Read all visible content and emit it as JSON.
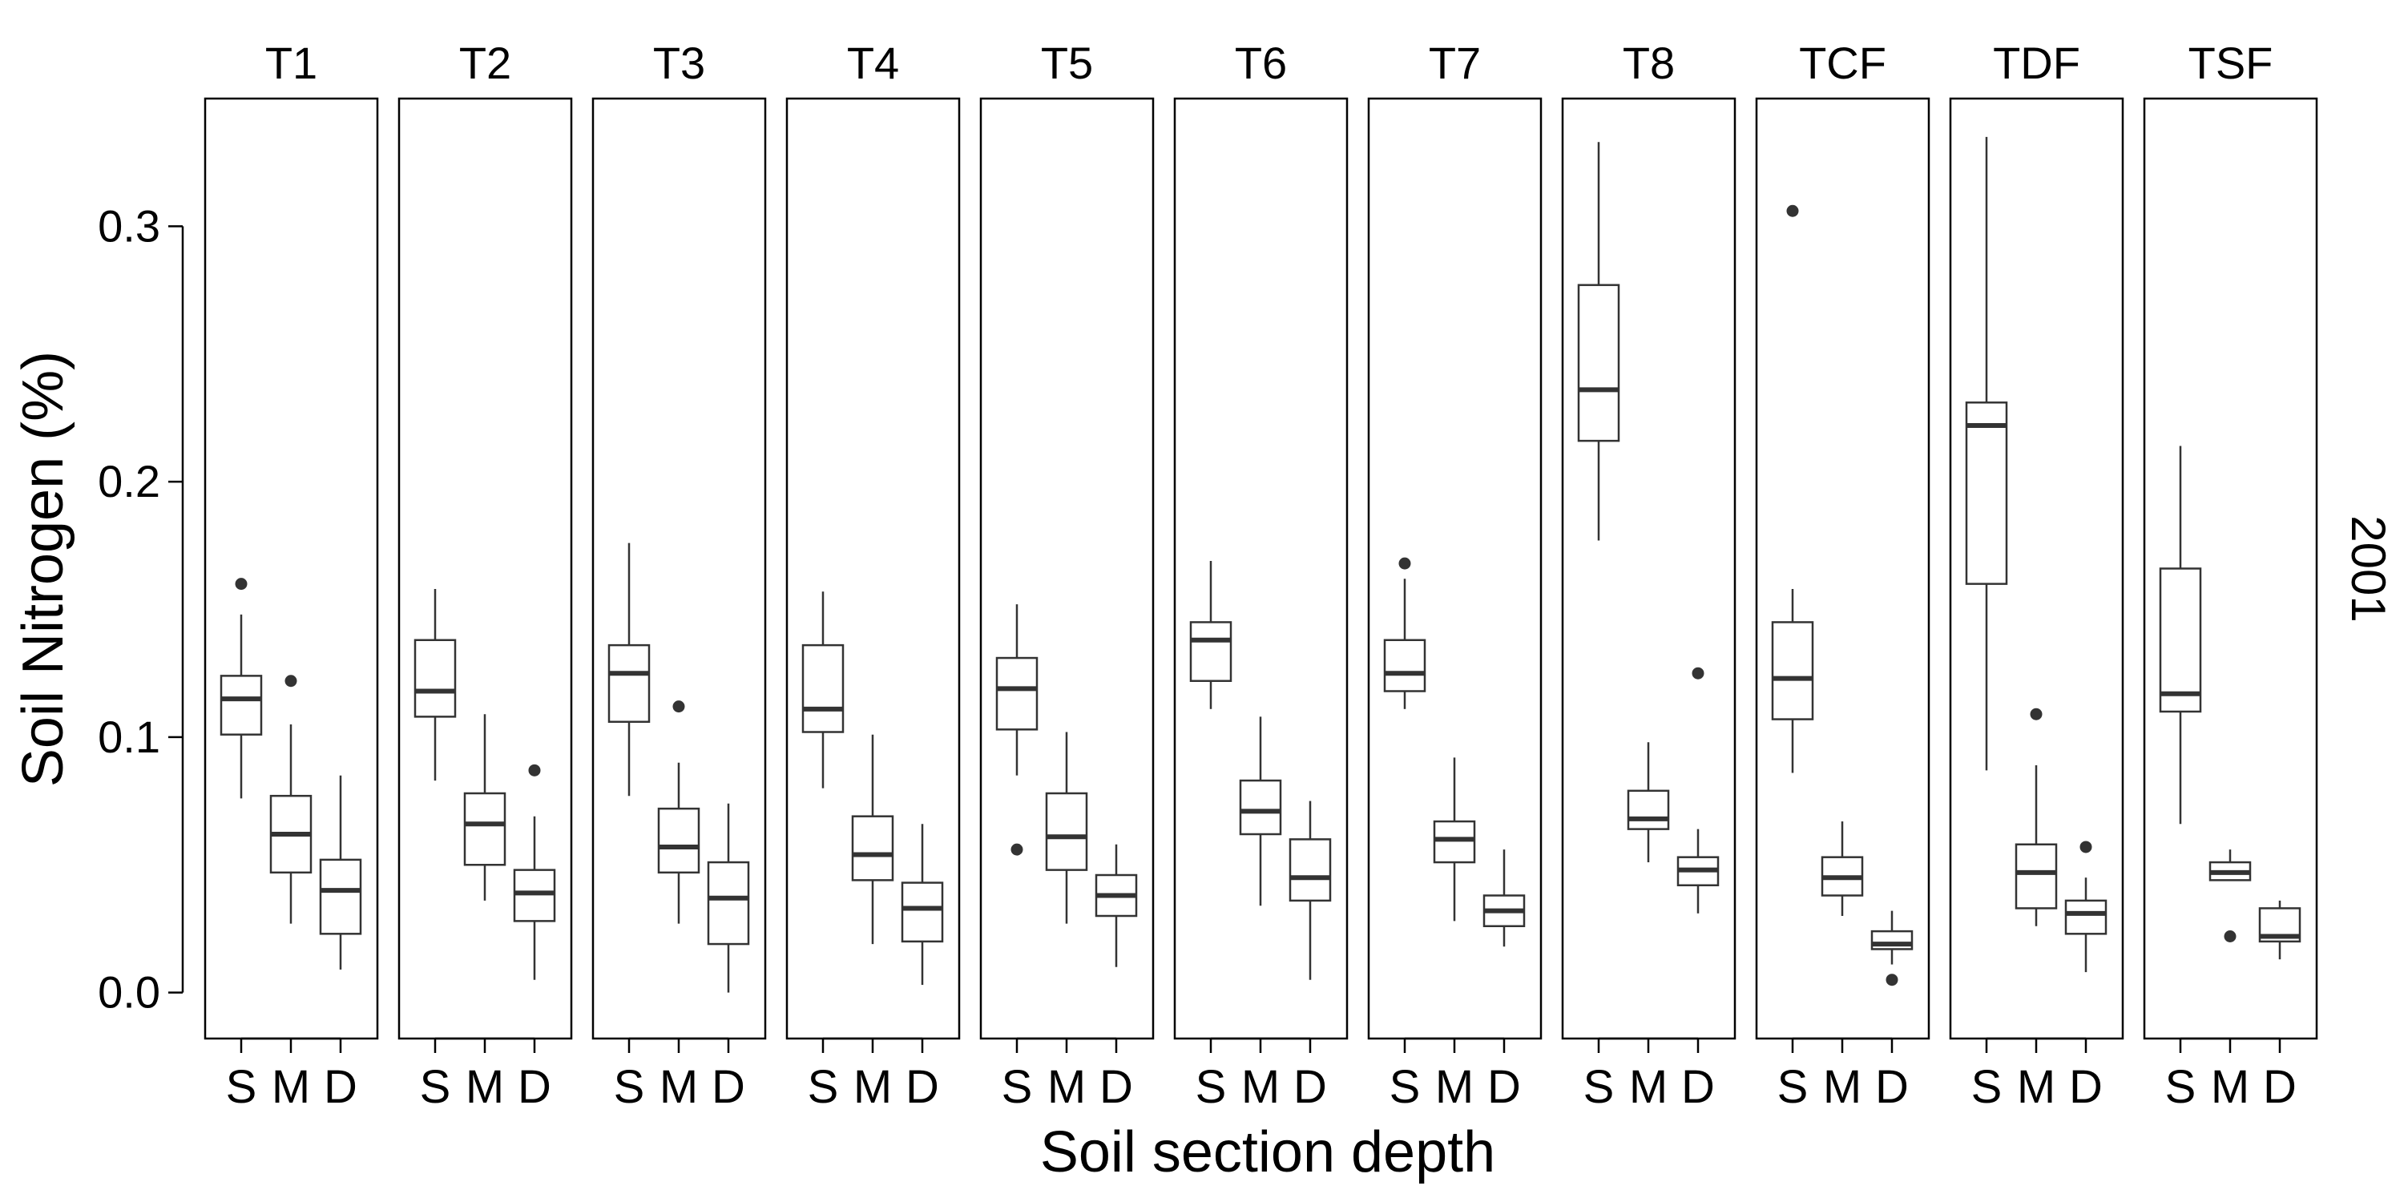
{
  "chart_data": {
    "type": "boxplot",
    "xlabel": "Soil section depth",
    "ylabel": "Soil Nitrogen (%)",
    "row_label": "2001",
    "ylim": [
      -0.018,
      0.35
    ],
    "yticks": [
      0.0,
      0.1,
      0.2,
      0.3
    ],
    "ytick_labels": [
      "0.0",
      "0.1",
      "0.2",
      "0.3"
    ],
    "categories": [
      "S",
      "M",
      "D"
    ],
    "grid": false,
    "panels": [
      {
        "name": "T1",
        "boxes": [
          {
            "cat": "S",
            "whislo": 0.076,
            "q1": 0.101,
            "med": 0.115,
            "q3": 0.124,
            "whishi": 0.148,
            "fliers": [
              0.16
            ]
          },
          {
            "cat": "M",
            "whislo": 0.027,
            "q1": 0.047,
            "med": 0.062,
            "q3": 0.077,
            "whishi": 0.105,
            "fliers": [
              0.122
            ]
          },
          {
            "cat": "D",
            "whislo": 0.009,
            "q1": 0.023,
            "med": 0.04,
            "q3": 0.052,
            "whishi": 0.085,
            "fliers": []
          }
        ]
      },
      {
        "name": "T2",
        "boxes": [
          {
            "cat": "S",
            "whislo": 0.083,
            "q1": 0.108,
            "med": 0.118,
            "q3": 0.138,
            "whishi": 0.158,
            "fliers": []
          },
          {
            "cat": "M",
            "whislo": 0.036,
            "q1": 0.05,
            "med": 0.066,
            "q3": 0.078,
            "whishi": 0.109,
            "fliers": []
          },
          {
            "cat": "D",
            "whislo": 0.005,
            "q1": 0.028,
            "med": 0.039,
            "q3": 0.048,
            "whishi": 0.069,
            "fliers": [
              0.087
            ]
          }
        ]
      },
      {
        "name": "T3",
        "boxes": [
          {
            "cat": "S",
            "whislo": 0.077,
            "q1": 0.106,
            "med": 0.125,
            "q3": 0.136,
            "whishi": 0.176,
            "fliers": []
          },
          {
            "cat": "M",
            "whislo": 0.027,
            "q1": 0.047,
            "med": 0.057,
            "q3": 0.072,
            "whishi": 0.09,
            "fliers": [
              0.112
            ]
          },
          {
            "cat": "D",
            "whislo": 0.0,
            "q1": 0.019,
            "med": 0.037,
            "q3": 0.051,
            "whishi": 0.074,
            "fliers": []
          }
        ]
      },
      {
        "name": "T4",
        "boxes": [
          {
            "cat": "S",
            "whislo": 0.08,
            "q1": 0.102,
            "med": 0.111,
            "q3": 0.136,
            "whishi": 0.157,
            "fliers": []
          },
          {
            "cat": "M",
            "whislo": 0.019,
            "q1": 0.044,
            "med": 0.054,
            "q3": 0.069,
            "whishi": 0.101,
            "fliers": []
          },
          {
            "cat": "D",
            "whislo": 0.003,
            "q1": 0.02,
            "med": 0.033,
            "q3": 0.043,
            "whishi": 0.066,
            "fliers": []
          }
        ]
      },
      {
        "name": "T5",
        "boxes": [
          {
            "cat": "S",
            "whislo": 0.085,
            "q1": 0.103,
            "med": 0.119,
            "q3": 0.131,
            "whishi": 0.152,
            "fliers": [
              0.056
            ]
          },
          {
            "cat": "M",
            "whislo": 0.027,
            "q1": 0.048,
            "med": 0.061,
            "q3": 0.078,
            "whishi": 0.102,
            "fliers": []
          },
          {
            "cat": "D",
            "whislo": 0.01,
            "q1": 0.03,
            "med": 0.038,
            "q3": 0.046,
            "whishi": 0.058,
            "fliers": []
          }
        ]
      },
      {
        "name": "T6",
        "boxes": [
          {
            "cat": "S",
            "whislo": 0.111,
            "q1": 0.122,
            "med": 0.138,
            "q3": 0.145,
            "whishi": 0.169,
            "fliers": []
          },
          {
            "cat": "M",
            "whislo": 0.034,
            "q1": 0.062,
            "med": 0.071,
            "q3": 0.083,
            "whishi": 0.108,
            "fliers": []
          },
          {
            "cat": "D",
            "whislo": 0.005,
            "q1": 0.036,
            "med": 0.045,
            "q3": 0.06,
            "whishi": 0.075,
            "fliers": []
          }
        ]
      },
      {
        "name": "T7",
        "boxes": [
          {
            "cat": "S",
            "whislo": 0.111,
            "q1": 0.118,
            "med": 0.125,
            "q3": 0.138,
            "whishi": 0.162,
            "fliers": [
              0.168
            ]
          },
          {
            "cat": "M",
            "whislo": 0.028,
            "q1": 0.051,
            "med": 0.06,
            "q3": 0.067,
            "whishi": 0.092,
            "fliers": []
          },
          {
            "cat": "D",
            "whislo": 0.018,
            "q1": 0.026,
            "med": 0.032,
            "q3": 0.038,
            "whishi": 0.056,
            "fliers": []
          }
        ]
      },
      {
        "name": "T8",
        "boxes": [
          {
            "cat": "S",
            "whislo": 0.177,
            "q1": 0.216,
            "med": 0.236,
            "q3": 0.277,
            "whishi": 0.333,
            "fliers": []
          },
          {
            "cat": "M",
            "whislo": 0.051,
            "q1": 0.064,
            "med": 0.068,
            "q3": 0.079,
            "whishi": 0.098,
            "fliers": []
          },
          {
            "cat": "D",
            "whislo": 0.031,
            "q1": 0.042,
            "med": 0.048,
            "q3": 0.053,
            "whishi": 0.064,
            "fliers": [
              0.125
            ]
          }
        ]
      },
      {
        "name": "TCF",
        "boxes": [
          {
            "cat": "S",
            "whislo": 0.086,
            "q1": 0.107,
            "med": 0.123,
            "q3": 0.145,
            "whishi": 0.158,
            "fliers": [
              0.306
            ]
          },
          {
            "cat": "M",
            "whislo": 0.03,
            "q1": 0.038,
            "med": 0.045,
            "q3": 0.053,
            "whishi": 0.067,
            "fliers": []
          },
          {
            "cat": "D",
            "whislo": 0.011,
            "q1": 0.017,
            "med": 0.019,
            "q3": 0.024,
            "whishi": 0.032,
            "fliers": [
              0.005
            ]
          }
        ]
      },
      {
        "name": "TDF",
        "boxes": [
          {
            "cat": "S",
            "whislo": 0.087,
            "q1": 0.16,
            "med": 0.222,
            "q3": 0.231,
            "whishi": 0.335,
            "fliers": []
          },
          {
            "cat": "M",
            "whislo": 0.026,
            "q1": 0.033,
            "med": 0.047,
            "q3": 0.058,
            "whishi": 0.089,
            "fliers": [
              0.109
            ]
          },
          {
            "cat": "D",
            "whislo": 0.008,
            "q1": 0.023,
            "med": 0.031,
            "q3": 0.036,
            "whishi": 0.045,
            "fliers": [
              0.057
            ]
          }
        ]
      },
      {
        "name": "TSF",
        "boxes": [
          {
            "cat": "S",
            "whislo": 0.066,
            "q1": 0.11,
            "med": 0.117,
            "q3": 0.166,
            "whishi": 0.214,
            "fliers": []
          },
          {
            "cat": "M",
            "whislo": 0.044,
            "q1": 0.044,
            "med": 0.047,
            "q3": 0.051,
            "whishi": 0.056,
            "fliers": [
              0.022
            ]
          },
          {
            "cat": "D",
            "whislo": 0.013,
            "q1": 0.02,
            "med": 0.022,
            "q3": 0.033,
            "whishi": 0.036,
            "fliers": []
          }
        ]
      }
    ]
  }
}
